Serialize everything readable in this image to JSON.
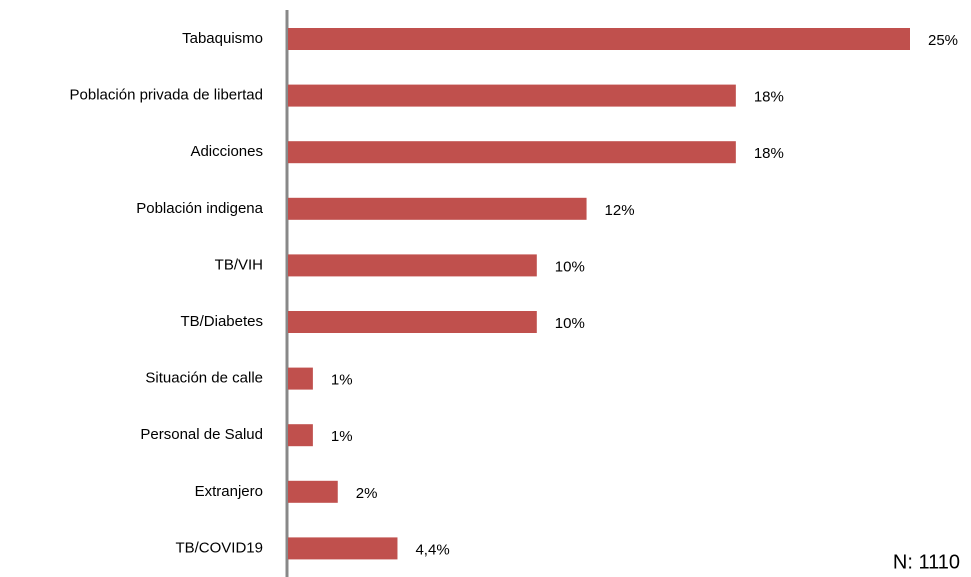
{
  "chart_data": {
    "type": "hbar",
    "categories": [
      "Tabaquismo",
      "Población privada de libertad",
      "Adicciones",
      "Población indigena",
      "TB/VIH",
      "TB/Diabetes",
      "Situación de calle",
      "Personal de Salud",
      "Extranjero",
      "TB/COVID19"
    ],
    "values": [
      25,
      18,
      18,
      12,
      10,
      10,
      1,
      1,
      2,
      4.4
    ],
    "value_labels": [
      "25%",
      "18%",
      "18%",
      "12%",
      "10%",
      "10%",
      "1%",
      "1%",
      "2%",
      "4,4%"
    ],
    "color": "#c0504d",
    "annotation": "N: 1110"
  }
}
